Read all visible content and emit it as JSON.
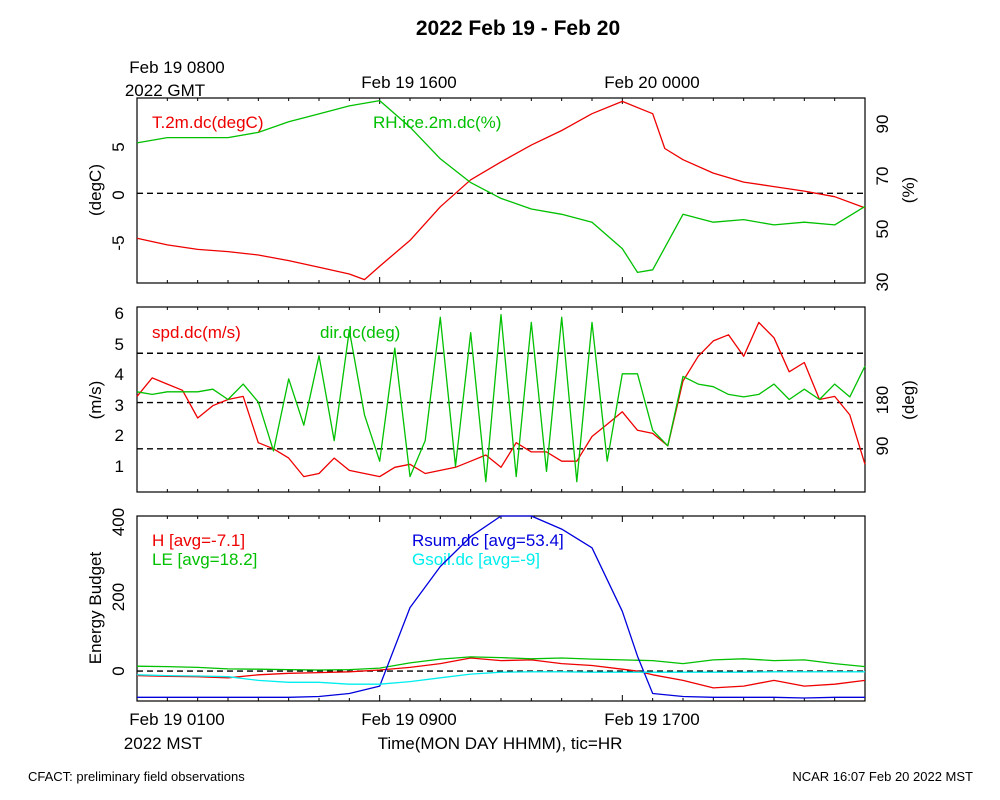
{
  "title": "2022 Feb 19 - Feb 20",
  "top_time_labels": [
    {
      "line1": "Feb 19 0800",
      "line2": "2022 GMT"
    },
    {
      "line1": "Feb 19 1600",
      "line2": ""
    },
    {
      "line1": "Feb 20 0000",
      "line2": ""
    }
  ],
  "bottom_time_labels": [
    {
      "line1": "Feb 19 0100",
      "line2": "2022 MST"
    },
    {
      "line1": "Feb 19 0900",
      "line2": ""
    },
    {
      "line1": "Feb 19 1700",
      "line2": ""
    }
  ],
  "xlabel": "Time(MON DAY HHMM), tic=HR",
  "footer_left": "CFACT: preliminary field observations",
  "footer_right": "NCAR 16:07 Feb 20 2022 MST",
  "colors": {
    "red": "#ee0000",
    "green": "#00c000",
    "blue": "#0000dd",
    "cyan": "#00eeee"
  },
  "chart_data": [
    {
      "type": "line",
      "panel": "temperature_rh",
      "x_unit": "hours after Feb 19 0100 MST",
      "xlim": [
        0,
        24
      ],
      "ylabel_left": "(degC)",
      "ylabel_right": "(%)",
      "ylim_left": [
        -8,
        8.5
      ],
      "ylim_right": [
        29,
        99
      ],
      "yticks_left": [
        "5",
        "0",
        "-5"
      ],
      "yticks_right": [
        "90",
        "70",
        "50",
        "30"
      ],
      "reference_lines_left": [
        0
      ],
      "series": [
        {
          "name": "T.2m.dc(degC)",
          "axis": "left",
          "color": "red",
          "x": [
            0,
            1,
            2,
            3,
            4,
            5,
            6,
            7,
            7.5,
            8,
            9,
            10,
            11,
            12,
            13,
            14,
            15,
            16,
            17,
            17.4,
            18,
            19,
            20,
            21,
            22,
            23,
            24
          ],
          "y": [
            -4,
            -4.6,
            -5,
            -5.2,
            -5.5,
            -6,
            -6.6,
            -7.2,
            -7.7,
            -6.5,
            -4.2,
            -1.2,
            1.2,
            2.8,
            4.3,
            5.6,
            7.1,
            8.2,
            7.1,
            4,
            3,
            1.8,
            1,
            0.6,
            0.2,
            -0.3,
            -1.3
          ]
        },
        {
          "name": "RH.ice.2m.dc(%)",
          "axis": "right",
          "color": "green",
          "x": [
            0,
            1,
            2,
            3,
            4,
            5,
            6,
            7,
            8,
            9,
            10,
            11,
            12,
            13,
            14,
            15,
            16,
            16.5,
            17,
            18,
            19,
            20,
            21,
            22,
            23,
            24
          ],
          "y": [
            82,
            84,
            84,
            84,
            86,
            90,
            93,
            96,
            98,
            88,
            76,
            67,
            61,
            57,
            55,
            52,
            42,
            33,
            34,
            55,
            52,
            53,
            51,
            52,
            51,
            58
          ]
        }
      ]
    },
    {
      "type": "line",
      "panel": "wind",
      "x_unit": "hours after Feb 19 0100 MST",
      "xlim": [
        0,
        24
      ],
      "ylabel_left": "(m/s)",
      "ylabel_right": "(deg)",
      "ylim_left": [
        0.2,
        6.2
      ],
      "ylim_right": [
        0,
        360
      ],
      "yticks_left": [
        "6",
        "5",
        "4",
        "3",
        "2",
        "1"
      ],
      "yticks_right": [
        "180",
        "90"
      ],
      "reference_lines_left": [
        1.6,
        3.1,
        4.7
      ],
      "series": [
        {
          "name": "spd.dc(m/s)",
          "axis": "left",
          "color": "red",
          "x": [
            0,
            0.5,
            1,
            1.5,
            2,
            2.5,
            3,
            3.5,
            4,
            4.5,
            5,
            5.5,
            6,
            6.5,
            7,
            7.5,
            8,
            8.5,
            9,
            9.5,
            10,
            10.5,
            11,
            11.5,
            12,
            12.5,
            13,
            13.5,
            14,
            14.5,
            15,
            15.5,
            16,
            16.5,
            17,
            17.5,
            18,
            18.5,
            19,
            19.5,
            20,
            20.5,
            21,
            21.5,
            22,
            22.5,
            23,
            23.5,
            24
          ],
          "y": [
            3.3,
            3.9,
            3.7,
            3.5,
            2.6,
            3,
            3.2,
            3.3,
            1.8,
            1.6,
            1.3,
            0.7,
            0.8,
            1.3,
            0.9,
            0.8,
            0.7,
            1,
            1.1,
            0.8,
            0.9,
            1,
            1.2,
            1.4,
            1,
            1.8,
            1.5,
            1.5,
            1.2,
            1.2,
            2,
            2.4,
            2.8,
            2.2,
            2.1,
            1.7,
            3.8,
            4.6,
            5.1,
            5.3,
            4.6,
            5.7,
            5.2,
            4.1,
            4.4,
            3.2,
            3.3,
            2.7,
            1.1
          ]
        },
        {
          "name": "dir.dc(deg)",
          "axis": "right",
          "color": "green",
          "x": [
            0,
            0.5,
            1,
            1.5,
            2,
            2.5,
            3,
            3.5,
            4,
            4.5,
            5,
            5.5,
            6,
            6.5,
            7,
            7.5,
            8,
            8.5,
            9,
            9.5,
            10,
            10.5,
            11,
            11.5,
            12,
            12.5,
            13,
            13.5,
            14,
            14.5,
            15,
            15.5,
            16,
            16.5,
            17,
            17.5,
            18,
            18.5,
            19,
            19.5,
            20,
            20.5,
            21,
            21.5,
            22,
            22.5,
            23,
            23.5,
            24
          ],
          "y": [
            195,
            190,
            195,
            195,
            195,
            200,
            180,
            210,
            175,
            80,
            220,
            130,
            265,
            100,
            315,
            150,
            60,
            280,
            30,
            100,
            340,
            50,
            310,
            20,
            345,
            30,
            330,
            40,
            340,
            20,
            330,
            60,
            230,
            230,
            120,
            90,
            225,
            210,
            205,
            190,
            185,
            190,
            210,
            180,
            200,
            180,
            210,
            185,
            245
          ]
        }
      ]
    },
    {
      "type": "line",
      "panel": "energy_budget",
      "x_unit": "hours after Feb 19 0100 MST",
      "xlim": [
        0,
        24
      ],
      "ylabel_left": "Energy Budget",
      "ylim_left": [
        -80,
        415
      ],
      "yticks_left": [
        "400",
        "200",
        "0"
      ],
      "reference_lines_left": [
        0
      ],
      "series": [
        {
          "name": "H [avg=-7.1]",
          "axis": "left",
          "color": "red",
          "x": [
            0,
            1,
            2,
            3,
            4,
            5,
            6,
            7,
            8,
            9,
            10,
            11,
            12,
            13,
            14,
            15,
            16,
            16.5,
            17,
            18,
            19,
            20,
            21,
            22,
            23,
            24
          ],
          "y": [
            -12,
            -14,
            -15,
            -18,
            -10,
            -6,
            -4,
            -2,
            3,
            10,
            20,
            35,
            28,
            30,
            20,
            15,
            5,
            0,
            -10,
            -25,
            -45,
            -40,
            -25,
            -40,
            -35,
            -25
          ]
        },
        {
          "name": "LE [avg=18.2]",
          "axis": "left",
          "color": "green",
          "x": [
            0,
            1,
            2,
            3,
            4,
            5,
            6,
            7,
            8,
            9,
            10,
            11,
            12,
            13,
            14,
            15,
            16,
            17,
            18,
            19,
            20,
            21,
            22,
            23,
            24
          ],
          "y": [
            13,
            12,
            10,
            6,
            5,
            4,
            3,
            4,
            8,
            22,
            32,
            38,
            36,
            33,
            35,
            32,
            30,
            28,
            20,
            30,
            33,
            28,
            30,
            20,
            12
          ]
        },
        {
          "name": "Rsum.dc [avg=53.4]",
          "axis": "left",
          "color": "blue",
          "x": [
            0,
            1,
            2,
            3,
            4,
            5,
            6,
            7,
            8,
            9,
            10,
            11,
            12,
            13,
            14,
            15,
            16,
            16.5,
            17,
            18,
            19,
            20,
            21,
            22,
            23,
            24
          ],
          "y": [
            -70,
            -70,
            -70,
            -70,
            -70,
            -70,
            -68,
            -60,
            -40,
            170,
            280,
            360,
            415,
            415,
            380,
            330,
            160,
            40,
            -60,
            -68,
            -70,
            -70,
            -70,
            -72,
            -70,
            -70
          ]
        },
        {
          "name": "Gsoil.dc [avg=-9]",
          "axis": "left",
          "color": "cyan",
          "x": [
            0,
            1,
            2,
            3,
            4,
            5,
            6,
            7,
            8,
            9,
            10,
            11,
            12,
            13,
            14,
            15,
            16,
            17,
            18,
            19,
            20,
            21,
            22,
            23,
            24
          ],
          "y": [
            -10,
            -12,
            -13,
            -15,
            -25,
            -30,
            -30,
            -35,
            -35,
            -28,
            -18,
            -8,
            -3,
            -2,
            -2,
            -3,
            -3,
            -3,
            -3,
            -3,
            -3,
            -2,
            -2,
            -2,
            -2
          ]
        }
      ]
    }
  ]
}
